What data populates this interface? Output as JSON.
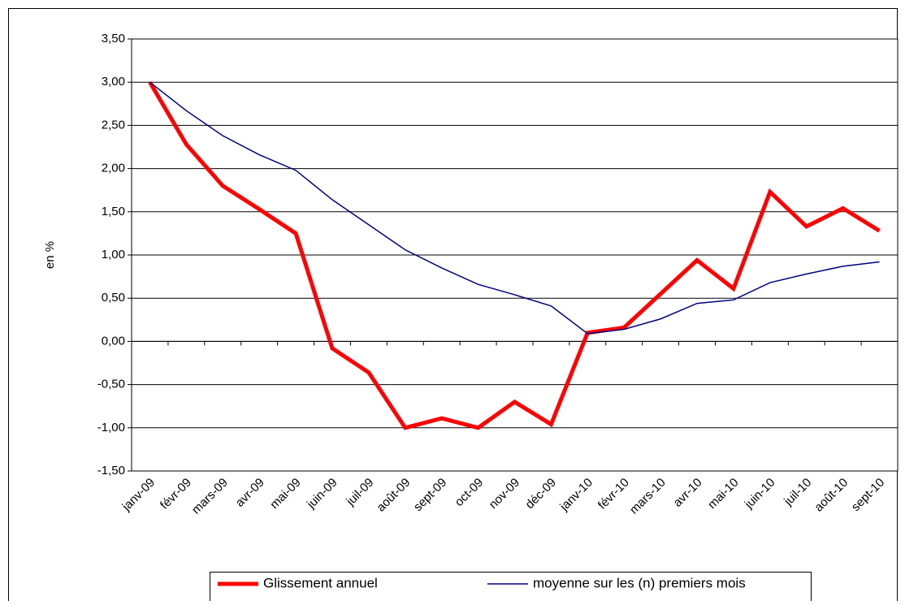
{
  "chart_data": {
    "type": "line",
    "y_label": "en %",
    "categories": [
      "janv-09",
      "févr-09",
      "mars-09",
      "avr-09",
      "mai-09",
      "juin-09",
      "juil-09",
      "août-09",
      "sept-09",
      "oct-09",
      "nov-09",
      "déc-09",
      "janv-10",
      "févr-10",
      "mars-10",
      "avr-10",
      "mai-10",
      "juin-10",
      "juil-10",
      "août-10",
      "sept-10"
    ],
    "series": [
      {
        "name": "Glissement annuel",
        "color": "#ff0000",
        "values": [
          3.0,
          2.28,
          1.8,
          1.53,
          1.25,
          -0.08,
          -0.36,
          -1.0,
          -0.89,
          -1.0,
          -0.7,
          -0.96,
          0.1,
          0.16,
          0.55,
          0.94,
          0.61,
          1.73,
          1.33,
          1.54,
          1.28
        ]
      },
      {
        "name": "moyenne sur les (n) premiers mois",
        "color": "#000080",
        "values": [
          3.0,
          2.67,
          2.38,
          2.16,
          1.98,
          1.64,
          1.35,
          1.06,
          0.85,
          0.66,
          0.54,
          0.41,
          0.09,
          0.14,
          0.26,
          0.44,
          0.48,
          0.68,
          0.78,
          0.87,
          0.92
        ]
      }
    ],
    "ylim": [
      -1.5,
      3.5
    ],
    "yticks": [
      {
        "value": -1.5,
        "label": "-1,50"
      },
      {
        "value": -1,
        "label": "-1,00"
      },
      {
        "value": -0.5,
        "label": "-0,50"
      },
      {
        "value": 0,
        "label": "0,00"
      },
      {
        "value": 0.5,
        "label": "0,50"
      },
      {
        "value": 1,
        "label": "1,00"
      },
      {
        "value": 1.5,
        "label": "1,50"
      },
      {
        "value": 2,
        "label": "2,00"
      },
      {
        "value": 2.5,
        "label": "2,50"
      },
      {
        "value": 3,
        "label": "3,00"
      },
      {
        "value": 3.5,
        "label": "3,50"
      }
    ],
    "grid": true,
    "legend": "bottom"
  }
}
